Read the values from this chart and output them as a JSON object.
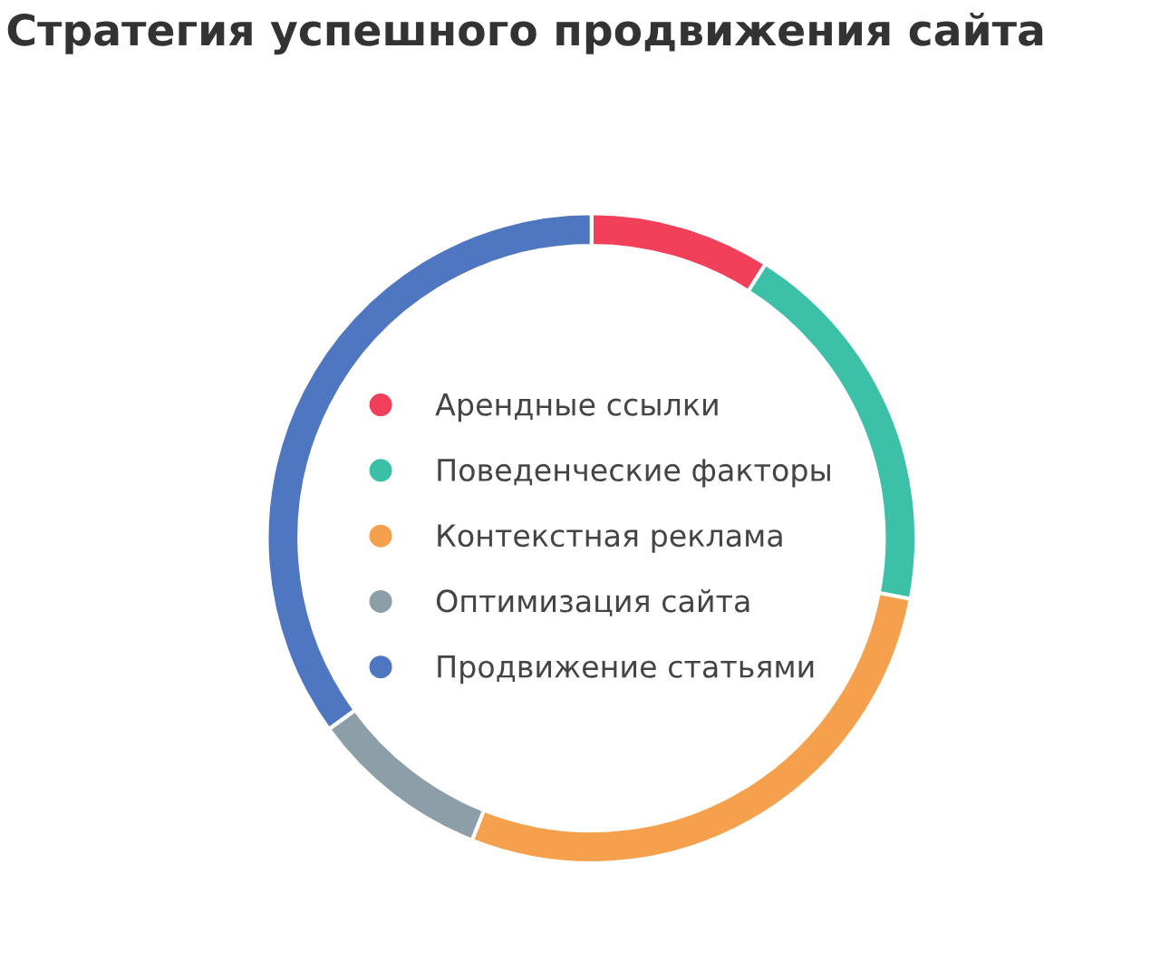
{
  "chart_data": {
    "type": "donut",
    "title": "Стратегия успешного продвижения сайта",
    "categories": [
      "Арендные ссылки",
      "Поведенческие факторы",
      "Контекстная реклама",
      "Оптимизация сайта",
      "Продвижение статьями"
    ],
    "values": [
      9,
      19,
      28,
      9,
      35
    ],
    "colors": [
      "#f2405a",
      "#3cc0a8",
      "#f4a04c",
      "#8c9ea8",
      "#4f76c0"
    ],
    "legend": "center"
  }
}
